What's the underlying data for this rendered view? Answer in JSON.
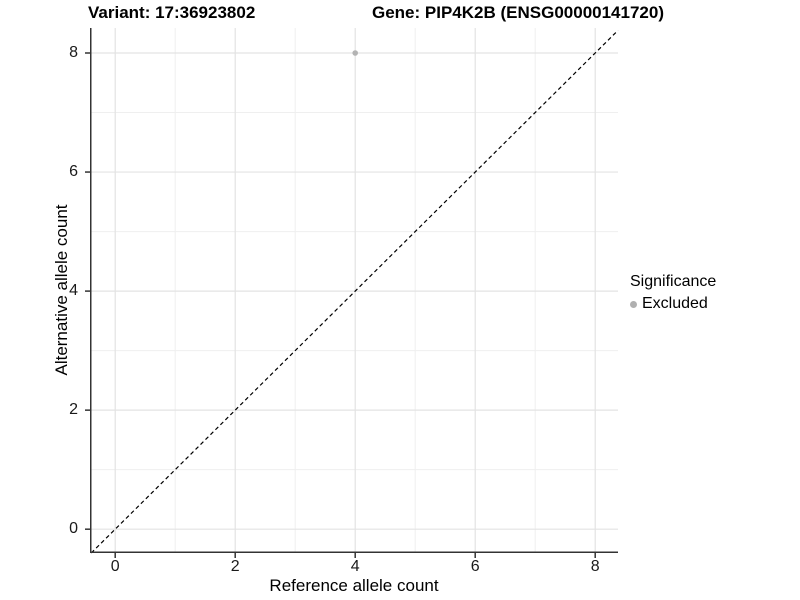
{
  "header": {
    "variant_title": "Variant: 17:36923802",
    "gene_title": "Gene: PIP4K2B (ENSG00000141720)"
  },
  "legend": {
    "title": "Significance",
    "position": "right",
    "items": [
      {
        "label": "Excluded",
        "color": "#b0b0b0",
        "marker": "circle"
      }
    ]
  },
  "colors": {
    "background": "#ffffff",
    "grid_major": "#e3e3e3",
    "grid_minor": "#efefef",
    "axis_line": "#333333",
    "tick_mark": "#333333",
    "tick_label": "#1a1a1a",
    "point": "#b3b3b3",
    "identity_line": "#000000"
  },
  "chart_data": {
    "type": "scatter",
    "title": "Variant: 17:36923802    Gene: PIP4K2B (ENSG00000141720)",
    "xlabel": "Reference allele count",
    "ylabel": "Alternative allele count",
    "xlim": [
      -0.42,
      8.38
    ],
    "ylim": [
      -0.4,
      8.42
    ],
    "x_major_ticks": [
      0,
      2,
      4,
      6,
      8
    ],
    "y_major_ticks": [
      0,
      2,
      4,
      6,
      8
    ],
    "x_minor_ticks": [
      1,
      3,
      5,
      7
    ],
    "y_minor_ticks": [
      1,
      3,
      5,
      7
    ],
    "grid": true,
    "legend_position": "right",
    "series": [
      {
        "name": "Excluded",
        "color": "#b3b3b3",
        "marker": "circle",
        "points": [
          {
            "x": 4,
            "y": 8
          }
        ]
      }
    ],
    "reference_line": {
      "kind": "identity",
      "equation": "y = x",
      "style": "dashed",
      "color": "#000000"
    }
  }
}
